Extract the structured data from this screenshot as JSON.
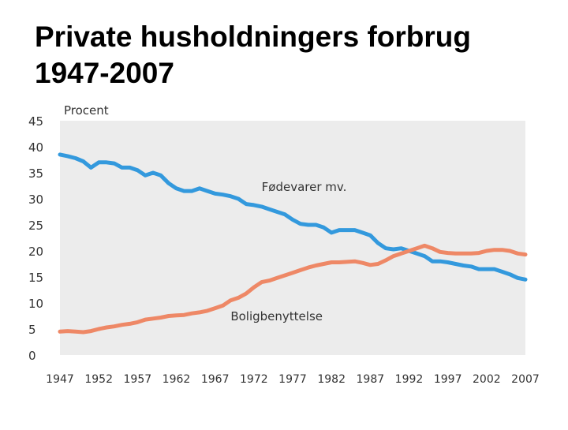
{
  "slide": {
    "title_line1": "Private husholdningers forbrug",
    "title_line2": "1947-2007"
  },
  "chart_data": {
    "type": "line",
    "title": "",
    "xlabel": "",
    "ylabel": "Procent",
    "ylim": [
      0,
      45
    ],
    "xlim": [
      1947,
      2007
    ],
    "yticks": [
      "0",
      "5",
      "10",
      "15",
      "20",
      "25",
      "30",
      "35",
      "40",
      "45"
    ],
    "xticks": [
      "1947",
      "1952",
      "1957",
      "1962",
      "1967",
      "1972",
      "1977",
      "1982",
      "1987",
      "1992",
      "1997",
      "2002",
      "2007"
    ],
    "grid": false,
    "background": "#ececec",
    "series": [
      {
        "name": "Fødevarer mv.",
        "color": "#3399dd",
        "x": [
          1947,
          1948,
          1949,
          1950,
          1951,
          1952,
          1953,
          1954,
          1955,
          1956,
          1957,
          1958,
          1959,
          1960,
          1961,
          1962,
          1963,
          1964,
          1965,
          1966,
          1967,
          1968,
          1969,
          1970,
          1971,
          1972,
          1973,
          1974,
          1975,
          1976,
          1977,
          1978,
          1979,
          1980,
          1981,
          1982,
          1983,
          1984,
          1985,
          1986,
          1987,
          1988,
          1989,
          1990,
          1991,
          1992,
          1993,
          1994,
          1995,
          1996,
          1997,
          1998,
          1999,
          2000,
          2001,
          2002,
          2003,
          2004,
          2005,
          2006,
          2007
        ],
        "values": [
          38.5,
          38.2,
          37.8,
          37.2,
          36.0,
          37.0,
          37.0,
          36.8,
          36.0,
          36.0,
          35.5,
          34.5,
          35.0,
          34.5,
          33.0,
          32.0,
          31.5,
          31.5,
          32.0,
          31.5,
          31.0,
          30.8,
          30.5,
          30.0,
          29.0,
          28.8,
          28.5,
          28.0,
          27.5,
          27.0,
          26.0,
          25.2,
          25.0,
          25.0,
          24.5,
          23.5,
          24.0,
          24.0,
          24.0,
          23.5,
          23.0,
          21.5,
          20.5,
          20.3,
          20.5,
          20.0,
          19.5,
          19.0,
          18.0,
          18.0,
          17.8,
          17.5,
          17.2,
          17.0,
          16.5,
          16.5,
          16.5,
          16.0,
          15.5,
          14.8,
          14.5
        ],
        "label": "Fødevarer mv.",
        "label_anchor": [
          1973,
          31.5
        ]
      },
      {
        "name": "Boligbenyttelse",
        "color": "#ee8866",
        "x": [
          1947,
          1948,
          1949,
          1950,
          1951,
          1952,
          1953,
          1954,
          1955,
          1956,
          1957,
          1958,
          1959,
          1960,
          1961,
          1962,
          1963,
          1964,
          1965,
          1966,
          1967,
          1968,
          1969,
          1970,
          1971,
          1972,
          1973,
          1974,
          1975,
          1976,
          1977,
          1978,
          1979,
          1980,
          1981,
          1982,
          1983,
          1984,
          1985,
          1986,
          1987,
          1988,
          1989,
          1990,
          1991,
          1992,
          1993,
          1994,
          1995,
          1996,
          1997,
          1998,
          1999,
          2000,
          2001,
          2002,
          2003,
          2004,
          2005,
          2006,
          2007
        ],
        "values": [
          4.5,
          4.6,
          4.5,
          4.4,
          4.6,
          5.0,
          5.3,
          5.5,
          5.8,
          6.0,
          6.3,
          6.8,
          7.0,
          7.2,
          7.5,
          7.6,
          7.7,
          8.0,
          8.2,
          8.5,
          9.0,
          9.5,
          10.5,
          11.0,
          11.8,
          13.0,
          14.0,
          14.3,
          14.8,
          15.3,
          15.8,
          16.3,
          16.8,
          17.2,
          17.5,
          17.8,
          17.8,
          17.9,
          18.0,
          17.7,
          17.3,
          17.5,
          18.2,
          19.0,
          19.5,
          20.0,
          20.5,
          21.0,
          20.5,
          19.8,
          19.6,
          19.5,
          19.5,
          19.5,
          19.6,
          20.0,
          20.2,
          20.2,
          20.0,
          19.5,
          19.3
        ],
        "label": "Boligbenyttelse",
        "label_anchor": [
          1969,
          6.7
        ]
      }
    ]
  }
}
